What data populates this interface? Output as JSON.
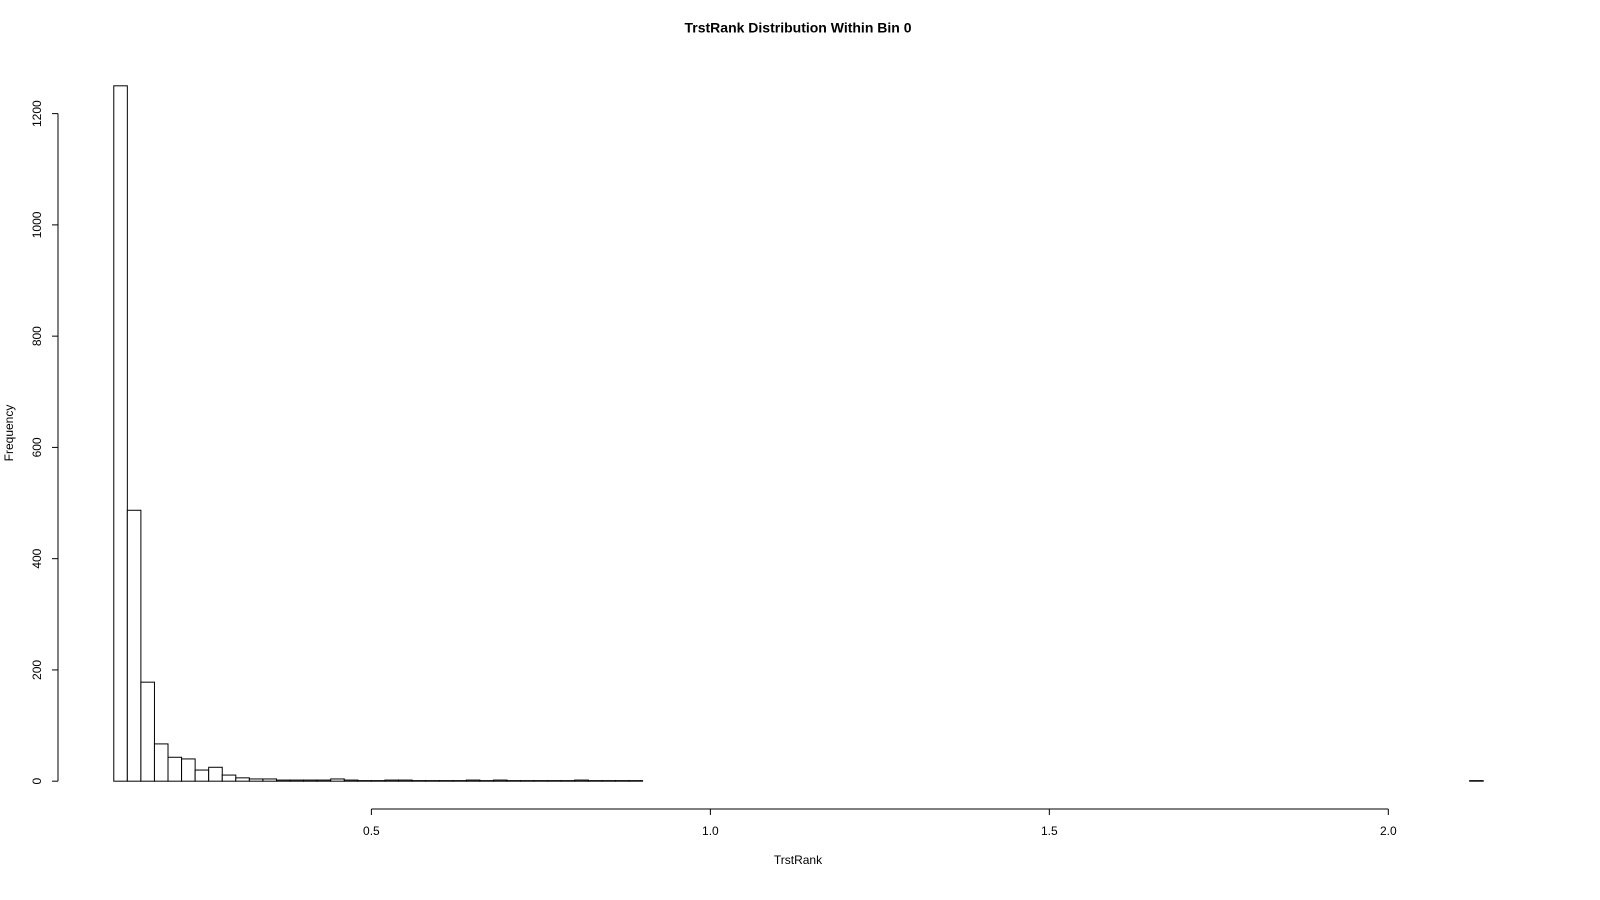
{
  "chart_data": {
    "type": "histogram",
    "title": "TrstRank Distribution Within Bin 0",
    "xlabel": "TrstRank",
    "ylabel": "Frequency",
    "bins": [
      0.12,
      0.14,
      0.16,
      0.18,
      0.2,
      0.22,
      0.24,
      0.26,
      0.28,
      0.3,
      0.32,
      0.34,
      0.36,
      0.38,
      0.4,
      0.42,
      0.44,
      0.46,
      0.48,
      0.5,
      0.52,
      0.54,
      0.56,
      0.58,
      0.6,
      0.62,
      0.64,
      0.66,
      0.68,
      0.7,
      0.72,
      0.74,
      0.76,
      0.78,
      0.8,
      0.82,
      0.84,
      0.86,
      0.88,
      0.9,
      0.92,
      0.94,
      0.96,
      0.98,
      1,
      1.02,
      1.04,
      1.06,
      1.08,
      1.1,
      1.12,
      1.14,
      1.16,
      1.18,
      1.2,
      1.22,
      1.24,
      1.26,
      1.28,
      1.3,
      1.32,
      1.34,
      1.36,
      1.38,
      1.4,
      1.42,
      1.44,
      1.46,
      1.48,
      1.5,
      1.52,
      1.54,
      1.56,
      1.58,
      1.6,
      1.62,
      1.64,
      1.66,
      1.68,
      1.7,
      1.72,
      1.74,
      1.76,
      1.78,
      1.8,
      1.82,
      1.84,
      1.86,
      1.88,
      1.9,
      1.92,
      1.94,
      1.96,
      1.98,
      2,
      2.02,
      2.04,
      2.06,
      2.08,
      2.1,
      2.12,
      2.14
    ],
    "counts": [
      1250,
      487,
      178,
      67,
      43,
      40,
      20,
      25,
      11,
      6,
      4,
      4,
      2,
      2,
      2,
      2,
      4,
      2,
      1,
      1,
      2,
      2,
      1,
      1,
      1,
      1,
      2,
      1,
      2,
      1,
      1,
      1,
      1,
      1,
      2,
      1,
      1,
      1,
      1,
      0,
      0,
      0,
      0,
      0,
      0,
      0,
      0,
      0,
      0,
      0,
      0,
      0,
      0,
      0,
      0,
      0,
      0,
      0,
      0,
      0,
      0,
      0,
      0,
      0,
      0,
      0,
      0,
      0,
      0,
      0,
      0,
      0,
      0,
      0,
      0,
      0,
      0,
      0,
      0,
      0,
      0,
      0,
      0,
      0,
      0,
      0,
      0,
      0,
      0,
      0,
      0,
      0,
      0,
      0,
      0,
      0,
      0,
      0,
      0,
      0,
      1
    ],
    "color": "#ffffff",
    "edgecolor": "#000000",
    "xlim": [
      0.0392,
      2.2208
    ],
    "ylim": [
      -50,
      1300
    ],
    "xticks": [
      0.5,
      {
        "value": 1,
        "label": "1.0"
      },
      1.5,
      {
        "value": 2,
        "label": "2.0"
      }
    ],
    "yticks": [
      0,
      200,
      400,
      600,
      800,
      1000,
      1200
    ]
  }
}
